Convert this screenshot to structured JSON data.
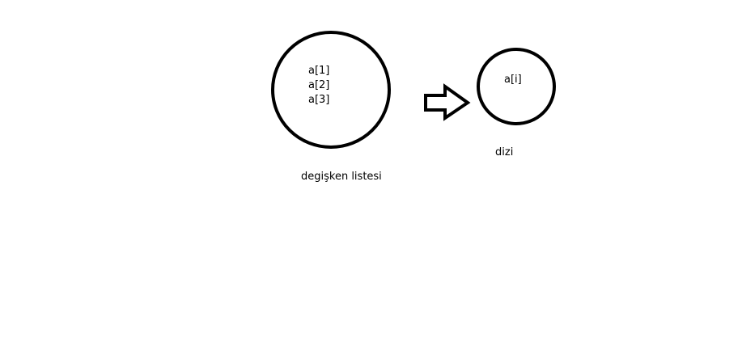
{
  "diagram": {
    "source_set": {
      "items": [
        "a[1]",
        "a[2]",
        "a[3]"
      ],
      "caption": "degişken listesi"
    },
    "target_set": {
      "item": "a[i]",
      "caption": "dizi"
    },
    "colors": {
      "stroke": "#000000",
      "background": "#ffffff"
    },
    "icons": {
      "connector": "right-arrow-icon"
    }
  }
}
